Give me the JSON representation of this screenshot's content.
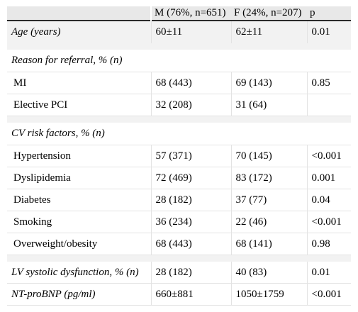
{
  "header": {
    "blank": "",
    "male": "M (76%, n=651)",
    "female": "F (24%, n=207)",
    "p": "p"
  },
  "age": {
    "label": "Age (years)",
    "m": "60±11",
    "f": "62±11",
    "p": "0.01"
  },
  "referral": {
    "title": "Reason for referral, % (n)",
    "rows": [
      {
        "label": "MI",
        "m": "68 (443)",
        "f": "69 (143)",
        "p": "0.85"
      },
      {
        "label": "Elective PCI",
        "m": "32 (208)",
        "f": "31 (64)",
        "p": ""
      }
    ]
  },
  "risk": {
    "title": "CV risk factors, % (n)",
    "rows": [
      {
        "label": "Hypertension",
        "m": "57 (371)",
        "f": "70 (145)",
        "p": "<0.001"
      },
      {
        "label": "Dyslipidemia",
        "m": "72 (469)",
        "f": "83 (172)",
        "p": "0.001"
      },
      {
        "label": "Diabetes",
        "m": "28 (182)",
        "f": "37 (77)",
        "p": "0.04"
      },
      {
        "label": "Smoking",
        "m": "36 (234)",
        "f": "22 (46)",
        "p": "<0.001"
      },
      {
        "label": "Overweight/obesity",
        "m": "68 (443)",
        "f": "68 (141)",
        "p": "0.98"
      }
    ]
  },
  "lv": {
    "label": "LV systolic dysfunction, % (n)",
    "m": "28 (182)",
    "f": "40 (83)",
    "p": "0.01"
  },
  "ntprobnp": {
    "label": "NT-proBNP (pg/ml)",
    "m": "660±881",
    "f": "1050±1759",
    "p": "<0.001"
  }
}
